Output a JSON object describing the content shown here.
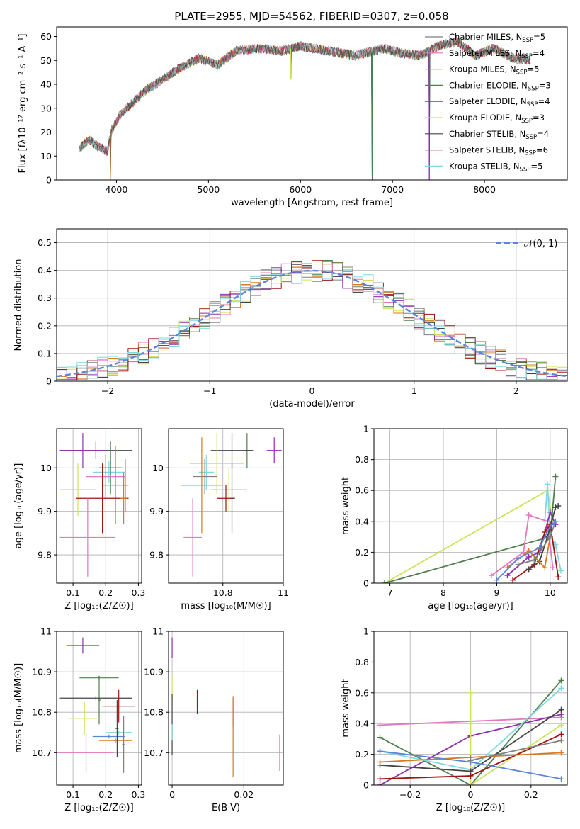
{
  "figure_title": "PLATE=2955, MJD=54562, FIBERID=0307, z=0.058",
  "series_colors": [
    "#7f7f7f",
    "#e377c2",
    "#d87a1e",
    "#4f7f4f",
    "#8e2fae",
    "#cde35a",
    "#444444",
    "#a01313",
    "#7ed9dd"
  ],
  "chart_data": [
    {
      "id": "spectrum",
      "type": "line",
      "title": "PLATE=2955, MJD=54562, FIBERID=0307, z=0.058",
      "xlabel": "wavelength [Angstrom, rest frame]",
      "ylabel": "Flux [fλ10⁻¹⁷ erg cm⁻² s⁻¹ A⁻¹]",
      "xlim": [
        3350,
        8900
      ],
      "ylim": [
        0,
        64
      ],
      "xticks": [
        4000,
        5000,
        6000,
        7000,
        8000
      ],
      "yticks": [
        0,
        10,
        20,
        30,
        40,
        50,
        60
      ],
      "legend_position": "upper-right",
      "grid": false,
      "continuum": {
        "x": [
          3600,
          3700,
          3800,
          3900,
          3950,
          4050,
          4200,
          4300,
          4500,
          4700,
          4900,
          5100,
          5300,
          5500,
          5800,
          6000,
          6300,
          6600,
          6900,
          7100,
          7300,
          7500,
          7700,
          7900,
          8100,
          8300,
          8500
        ],
        "y": [
          13,
          17,
          14,
          12,
          21,
          28,
          33,
          37,
          42,
          47,
          51,
          48,
          54,
          55,
          54,
          56,
          54,
          52,
          55,
          53,
          52,
          56,
          58,
          52,
          55,
          51,
          50
        ]
      },
      "drops": [
        [
          3934,
          0
        ],
        [
          6780,
          0
        ],
        [
          7400,
          0
        ],
        [
          5895,
          42
        ]
      ],
      "series": [
        {
          "label": "Chabrier MILES, N",
          "sub": "SSP",
          "tail": "=5"
        },
        {
          "label": "Salpeter MILES, N",
          "sub": "SSP",
          "tail": "=4"
        },
        {
          "label": "Kroupa MILES, N",
          "sub": "SSP",
          "tail": "=5"
        },
        {
          "label": "Chabrier ELODIE, N",
          "sub": "SSP",
          "tail": "=3"
        },
        {
          "label": "Salpeter ELODIE, N",
          "sub": "SSP",
          "tail": "=4"
        },
        {
          "label": "Kroupa ELODIE, N",
          "sub": "SSP",
          "tail": "=3"
        },
        {
          "label": "Chabrier STELIB, N",
          "sub": "SSP",
          "tail": "=4"
        },
        {
          "label": "Salpeter STELIB, N",
          "sub": "SSP",
          "tail": "=6"
        },
        {
          "label": "Kroupa STELIB, N",
          "sub": "SSP",
          "tail": "=5"
        }
      ]
    },
    {
      "id": "residuals",
      "type": "histogram",
      "xlabel": "(data-model)/error",
      "ylabel": "Normed distribution",
      "xlim": [
        -2.5,
        2.5
      ],
      "ylim": [
        0,
        0.55
      ],
      "xticks": [
        -2,
        -1,
        0,
        1,
        2
      ],
      "yticks": [
        0.0,
        0.1,
        0.2,
        0.3,
        0.4,
        0.5
      ],
      "bin_width": 0.1,
      "bins_from": -2.5,
      "grid": true,
      "legend_position": "upper-right",
      "reference_curve": {
        "label": "𝒩(0, 1)",
        "color": "#5b86d8"
      }
    },
    {
      "id": "age_vs_Z",
      "type": "errorbar",
      "xlabel": "Z [log₁₀(Z/Z☉)]",
      "ylabel": "age  [log₁₀(age/yr)]",
      "xlim": [
        0.05,
        0.31
      ],
      "ylim": [
        9.735,
        10.09
      ],
      "xticks": [
        0.1,
        0.2,
        0.3
      ],
      "yticks": [
        9.8,
        9.9,
        10.0
      ],
      "grid": true,
      "points": [
        {
          "c": 6,
          "x": 0.17,
          "y": 10.04,
          "xe": 0.11,
          "ye": 0.02
        },
        {
          "c": 4,
          "x": 0.13,
          "y": 10.04,
          "xe": 0.07,
          "ye": 0.04
        },
        {
          "c": 8,
          "x": 0.21,
          "y": 9.99,
          "xe": 0.05,
          "ye": 0.025
        },
        {
          "c": 3,
          "x": 0.215,
          "y": 10.0,
          "xe": 0.035,
          "ye": 0.06
        },
        {
          "c": 0,
          "x": 0.2,
          "y": 9.98,
          "xe": 0.06,
          "ye": 0.05
        },
        {
          "c": 1,
          "x": 0.2,
          "y": 9.98,
          "xe": 0.06,
          "ye": 0.05
        },
        {
          "c": 2,
          "x": 0.23,
          "y": 9.96,
          "xe": 0.04,
          "ye": 0.09
        },
        {
          "c": 5,
          "x": 0.115,
          "y": 9.95,
          "xe": 0.055,
          "ye": 0.06
        },
        {
          "c": 7,
          "x": 0.19,
          "y": 9.93,
          "xe": 0.08,
          "ye": 0.08
        },
        {
          "c": 1,
          "x": 0.145,
          "y": 9.84,
          "xe": 0.085,
          "ye": 0.09
        },
        {
          "c": 2,
          "x": 0.255,
          "y": 9.93,
          "xe": 0.01,
          "ye": 0.06
        },
        {
          "c": 0,
          "x": 0.26,
          "y": 9.96,
          "xe": 0.005,
          "ye": 0.06
        }
      ]
    },
    {
      "id": "age_vs_mass",
      "type": "errorbar",
      "xlabel": "mass [log₁₀(M/M☉)]",
      "xlim": [
        10.62,
        11.0
      ],
      "ylim": [
        9.735,
        10.09
      ],
      "xticks": [
        10.8,
        11.0
      ],
      "yticks": [
        9.8,
        9.9,
        10.0
      ],
      "grid": true,
      "points": [
        {
          "c": 4,
          "x": 10.97,
          "y": 10.04,
          "xe": 0.025,
          "ye": 0.03
        },
        {
          "c": 3,
          "x": 10.88,
          "y": 10.04,
          "xe": 0.01,
          "ye": 0.04
        },
        {
          "c": 6,
          "x": 10.83,
          "y": 10.04,
          "xe": 0.07,
          "ye": 0.04
        },
        {
          "c": 5,
          "x": 10.78,
          "y": 10.01,
          "xe": 0.09,
          "ye": 0.07
        },
        {
          "c": 8,
          "x": 10.745,
          "y": 9.99,
          "xe": 0.025,
          "ye": 0.04
        },
        {
          "c": 0,
          "x": 10.74,
          "y": 9.98,
          "xe": 0.04,
          "ye": 0.04
        },
        {
          "c": 2,
          "x": 10.73,
          "y": 9.96,
          "xe": 0.07,
          "ye": 0.11
        },
        {
          "c": 5,
          "x": 10.82,
          "y": 9.95,
          "xe": 0.06,
          "ye": 0.05
        },
        {
          "c": 7,
          "x": 10.81,
          "y": 9.93,
          "xe": 0.03,
          "ye": 0.03
        },
        {
          "c": 6,
          "x": 10.83,
          "y": 9.93,
          "xe": 0.005,
          "ye": 0.08
        },
        {
          "c": 1,
          "x": 10.7,
          "y": 9.84,
          "xe": 0.03,
          "ye": 0.09
        }
      ]
    },
    {
      "id": "weight_vs_age",
      "type": "line",
      "xlabel": "age  [log₁₀(age/yr)]",
      "ylabel": "mass weight",
      "xlim": [
        6.7,
        10.32
      ],
      "ylim": [
        0,
        1
      ],
      "xticks": [
        7,
        8,
        9,
        10
      ],
      "yticks": [
        0.0,
        0.2,
        0.4,
        0.6,
        0.8,
        1.0
      ],
      "grid": true,
      "series": [
        {
          "c": 5,
          "x": [
            6.9,
            9.95,
            10.05
          ],
          "y": [
            0.0,
            0.6,
            0.4
          ]
        },
        {
          "c": 3,
          "x": [
            6.9,
            10.0,
            10.1
          ],
          "y": [
            0.0,
            0.3,
            0.69
          ]
        },
        {
          "c": 8,
          "x": [
            9.9,
            9.95,
            10.0,
            10.1,
            10.2
          ],
          "y": [
            0.4,
            0.64,
            0.3,
            0.25,
            0.08
          ]
        },
        {
          "c": 1,
          "x": [
            8.9,
            9.5,
            9.6,
            9.95,
            10.05
          ],
          "y": [
            0.05,
            0.2,
            0.44,
            0.4,
            0.1
          ]
        },
        {
          "c": 4,
          "x": [
            9.2,
            9.6,
            9.8,
            10.0,
            10.1
          ],
          "y": [
            0.05,
            0.17,
            0.2,
            0.46,
            0.38
          ]
        },
        {
          "c": 7,
          "x": [
            9.3,
            9.7,
            9.9,
            10.0,
            10.15
          ],
          "y": [
            0.02,
            0.12,
            0.33,
            0.38,
            0.04
          ]
        },
        {
          "c": 6,
          "x": [
            9.6,
            9.8,
            9.95,
            10.1,
            10.15
          ],
          "y": [
            0.09,
            0.14,
            0.3,
            0.49,
            0.5
          ]
        },
        {
          "c": 2,
          "x": [
            9.2,
            9.6,
            9.9,
            10.0
          ],
          "y": [
            0.1,
            0.21,
            0.1,
            0.3
          ]
        },
        {
          "c": 0,
          "x": [
            9.4,
            9.7,
            10.0,
            10.1
          ],
          "y": [
            0.12,
            0.15,
            0.3,
            0.4
          ]
        },
        {
          "c": 9,
          "x": [
            9.0,
            9.4,
            9.8,
            10.0,
            10.08
          ],
          "y": [
            0.02,
            0.16,
            0.23,
            0.37,
            0.39
          ]
        }
      ]
    },
    {
      "id": "mass_vs_Z",
      "type": "errorbar",
      "xlabel": "Z [log₁₀(Z/Z☉)]",
      "ylabel": "mass [log₁₀(M/M☉)]",
      "xlim": [
        0.05,
        0.31
      ],
      "ylim": [
        10.62,
        11.0
      ],
      "xticks": [
        0.1,
        0.2,
        0.3
      ],
      "yticks": [
        10.7,
        10.8,
        10.9,
        11.0
      ],
      "grid": true,
      "points": [
        {
          "c": 4,
          "x": 0.13,
          "y": 10.965,
          "xe": 0.05,
          "ye": 0.02
        },
        {
          "c": 3,
          "x": 0.18,
          "y": 10.885,
          "xe": 0.06,
          "ye": 0.005
        },
        {
          "c": 3,
          "x": 0.18,
          "y": 10.83,
          "xe": 0.004,
          "ye": 0.06
        },
        {
          "c": 6,
          "x": 0.17,
          "y": 10.835,
          "xe": 0.11,
          "ye": 0.005
        },
        {
          "c": 7,
          "x": 0.24,
          "y": 10.815,
          "xe": 0.05,
          "ye": 0.04
        },
        {
          "c": 5,
          "x": 0.135,
          "y": 10.785,
          "xe": 0.05,
          "ye": 0.04
        },
        {
          "c": 8,
          "x": 0.24,
          "y": 10.75,
          "xe": 0.04,
          "ye": 0.005
        },
        {
          "c": 9,
          "x": 0.21,
          "y": 10.74,
          "xe": 0.05,
          "ye": 0.005
        },
        {
          "c": 2,
          "x": 0.23,
          "y": 10.73,
          "xe": 0.05,
          "ye": 0.005
        },
        {
          "c": 6,
          "x": 0.235,
          "y": 10.76,
          "xe": 0.005,
          "ye": 0.07
        },
        {
          "c": 1,
          "x": 0.14,
          "y": 10.7,
          "xe": 0.085,
          "ye": 0.05
        },
        {
          "c": 0,
          "x": 0.255,
          "y": 10.72,
          "xe": 0.005,
          "ye": 0.07
        }
      ]
    },
    {
      "id": "mass_vs_EBV",
      "type": "errorbar",
      "xlabel": "E(B-V)",
      "xlim": [
        -0.001,
        0.031
      ],
      "ylim": [
        10.62,
        11.0
      ],
      "xticks": [
        0.0,
        0.02
      ],
      "yticks": [
        10.7,
        10.8,
        10.9,
        11.0
      ],
      "grid": true,
      "points": [
        {
          "c": 4,
          "x": 0.0,
          "y": 10.96,
          "xe": 0,
          "ye": 0.025
        },
        {
          "c": 5,
          "x": 0.0,
          "y": 10.86,
          "xe": 0,
          "ye": 0.03
        },
        {
          "c": 6,
          "x": 0.0,
          "y": 10.77,
          "xe": 0,
          "ye": 0.075
        },
        {
          "c": 8,
          "x": 0.0,
          "y": 10.75,
          "xe": 0,
          "ye": 0.02
        },
        {
          "c": 7,
          "x": 0.007,
          "y": 10.825,
          "xe": 0,
          "ye": 0.03
        },
        {
          "c": 9,
          "x": 0.017,
          "y": 10.8,
          "xe": 0,
          "ye": 0.035
        },
        {
          "c": 2,
          "x": 0.017,
          "y": 10.74,
          "xe": 0,
          "ye": 0.1
        },
        {
          "c": 1,
          "x": 0.03,
          "y": 10.7,
          "xe": 0,
          "ye": 0.045
        }
      ]
    },
    {
      "id": "weight_vs_Z",
      "type": "line",
      "xlabel": "Z [log₁₀(Z/Z☉)]",
      "ylabel": "mass weight",
      "xlim": [
        -0.32,
        0.32
      ],
      "ylim": [
        0,
        1
      ],
      "xticks": [
        -0.2,
        0.0,
        0.2
      ],
      "yticks": [
        0.0,
        0.2,
        0.4,
        0.6,
        0.8,
        1.0
      ],
      "grid": true,
      "series": [
        {
          "c": 1,
          "x": [
            -0.3,
            0.3
          ],
          "y": [
            0.39,
            0.44
          ]
        },
        {
          "c": 4,
          "x": [
            -0.3,
            0.0,
            0.3
          ],
          "y": [
            0.0,
            0.32,
            0.46
          ]
        },
        {
          "c": 3,
          "x": [
            -0.3,
            0.0,
            0.3
          ],
          "y": [
            0.31,
            0.0,
            0.68
          ]
        },
        {
          "c": 8,
          "x": [
            -0.3,
            0.0,
            0.3
          ],
          "y": [
            0.22,
            0.1,
            0.63
          ]
        },
        {
          "c": 5,
          "x": [
            0.0,
            0.0,
            0.3
          ],
          "y": [
            0.6,
            0.0,
            0.39
          ]
        },
        {
          "c": 6,
          "x": [
            -0.3,
            0.0,
            0.3
          ],
          "y": [
            0.13,
            0.09,
            0.49
          ]
        },
        {
          "c": 7,
          "x": [
            -0.3,
            0.0,
            0.3
          ],
          "y": [
            0.04,
            0.06,
            0.33
          ]
        },
        {
          "c": 2,
          "x": [
            -0.3,
            0.0,
            0.3
          ],
          "y": [
            0.15,
            0.18,
            0.21
          ]
        },
        {
          "c": 9,
          "x": [
            -0.3,
            0.0,
            0.3
          ],
          "y": [
            0.22,
            0.15,
            0.04
          ]
        },
        {
          "c": 0,
          "x": [
            0.0,
            0.3
          ],
          "y": [
            0.16,
            0.29
          ]
        }
      ]
    }
  ]
}
